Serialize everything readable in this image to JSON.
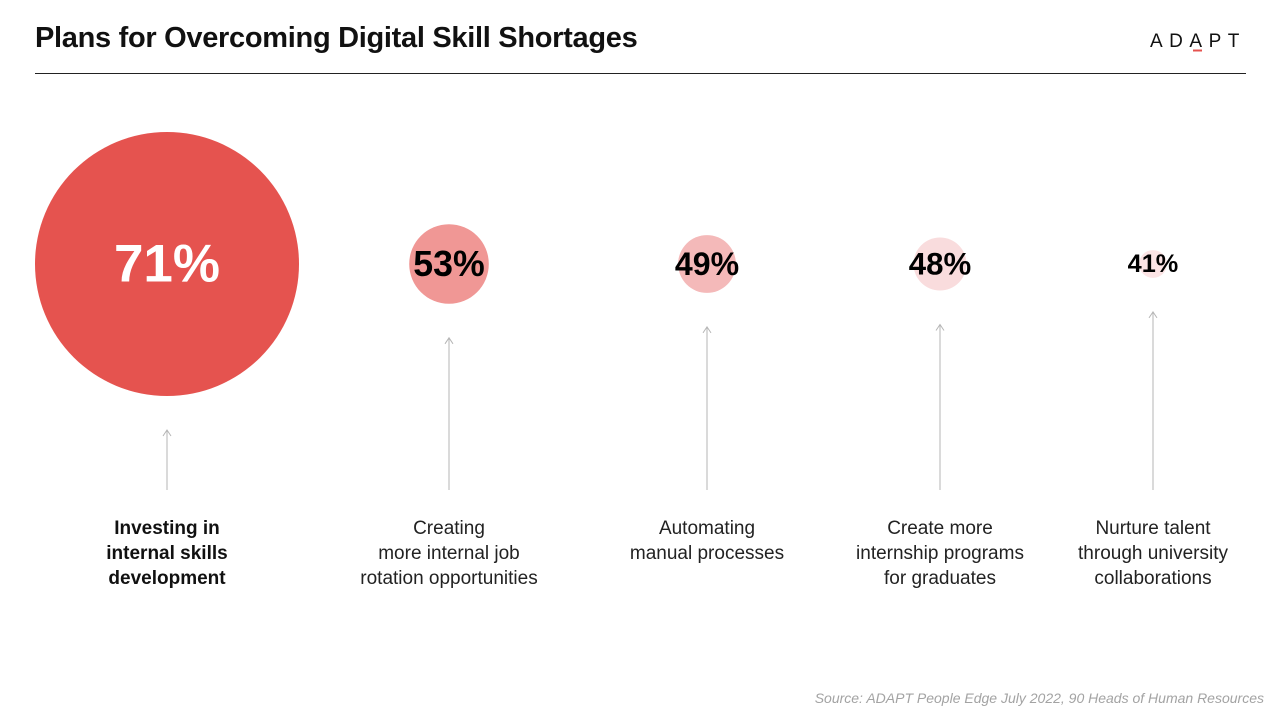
{
  "header": {
    "title": "Plans for Overcoming Digital Skill Shortages",
    "logo_text": "ADAPT"
  },
  "chart_data": {
    "type": "bubble",
    "title": "Plans for Overcoming Digital Skill Shortages",
    "unit": "%",
    "items": [
      {
        "label": "Investing in internal skills development",
        "value": 71,
        "display": "71%",
        "color": "#e5534f",
        "text_color": "#ffffff",
        "emphasis": true
      },
      {
        "label": "Creating more internal job rotation opportunities",
        "value": 53,
        "display": "53%",
        "color": "#f09795",
        "text_color": "#000000",
        "emphasis": false
      },
      {
        "label": "Automating manual processes",
        "value": 49,
        "display": "49%",
        "color": "#f4b9b9",
        "text_color": "#000000",
        "emphasis": false
      },
      {
        "label": "Create more internship programs for graduates",
        "value": 48,
        "display": "48%",
        "color": "#f9dcdd",
        "text_color": "#000000",
        "emphasis": false
      },
      {
        "label": "Nurture talent through university collaborations",
        "value": 41,
        "display": "41%",
        "color": "#fce4e5",
        "text_color": "#000000",
        "emphasis": false
      }
    ]
  },
  "labels": {
    "item0": [
      "Investing in",
      "internal skills",
      "development"
    ],
    "item1": [
      "Creating",
      "more internal job",
      "rotation opportunities"
    ],
    "item2": [
      "Automating",
      "manual processes"
    ],
    "item3": [
      "Create more",
      "internship programs",
      "for graduates"
    ],
    "item4": [
      "Nurture talent",
      "through university",
      "collaborations"
    ]
  },
  "source": "Source: ADAPT People Edge July 2022, 90 Heads of Human Resources",
  "colors": {
    "accent": "#e5534f",
    "arrow": "#b5b5b5"
  }
}
